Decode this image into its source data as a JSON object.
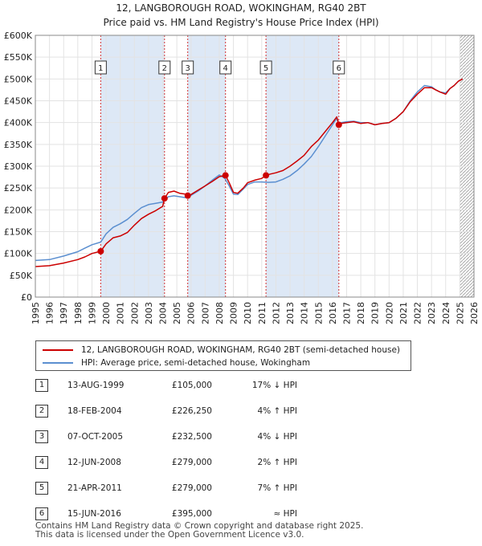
{
  "chart_data": {
    "type": "line",
    "title": "12, LANGBOROUGH ROAD, WOKINGHAM, RG40 2BT",
    "subtitle": "Price paid vs. HM Land Registry's House Price Index (HPI)",
    "xlabel": "",
    "ylabel": "",
    "xlim": [
      1995,
      2026
    ],
    "ylim": [
      0,
      600000
    ],
    "x_ticks": [
      1995,
      1996,
      1997,
      1998,
      1999,
      2000,
      2001,
      2002,
      2003,
      2004,
      2005,
      2006,
      2007,
      2008,
      2009,
      2010,
      2011,
      2012,
      2013,
      2014,
      2015,
      2016,
      2017,
      2018,
      2019,
      2020,
      2021,
      2022,
      2023,
      2024,
      2025,
      2026
    ],
    "y_ticks": [
      0,
      50000,
      100000,
      150000,
      200000,
      250000,
      300000,
      350000,
      400000,
      450000,
      500000,
      550000,
      600000
    ],
    "y_tick_labels": [
      "£0",
      "£50K",
      "£100K",
      "£150K",
      "£200K",
      "£250K",
      "£300K",
      "£350K",
      "£400K",
      "£450K",
      "£500K",
      "£550K",
      "£600K"
    ],
    "grid": true,
    "projection_start": 2025.0,
    "colors": {
      "property": "#cc0000",
      "hpi": "#5b8fd0",
      "shade": "#dde8f6",
      "marker_line": "#cc0000"
    },
    "series": [
      {
        "name": "12, LANGBOROUGH ROAD, WOKINGHAM, RG40 2BT (semi-detached house)",
        "color": "#cc0000",
        "x": [
          1995.0,
          1996.0,
          1997.0,
          1998.0,
          1998.5,
          1999.0,
          1999.62,
          2000.0,
          2000.5,
          2001.0,
          2001.5,
          2002.0,
          2002.5,
          2003.0,
          2003.5,
          2004.0,
          2004.13,
          2004.4,
          2004.8,
          2005.2,
          2005.6,
          2005.77,
          2006.0,
          2006.5,
          2007.0,
          2007.5,
          2008.0,
          2008.44,
          2008.7,
          2009.0,
          2009.3,
          2009.7,
          2010.0,
          2010.5,
          2011.0,
          2011.3,
          2011.6,
          2012.0,
          2012.5,
          2013.0,
          2013.5,
          2014.0,
          2014.5,
          2015.0,
          2015.5,
          2016.0,
          2016.3,
          2016.45,
          2016.6,
          2017.0,
          2017.5,
          2018.0,
          2018.5,
          2019.0,
          2019.5,
          2020.0,
          2020.5,
          2021.0,
          2021.5,
          2022.0,
          2022.5,
          2023.0,
          2023.3,
          2023.6,
          2024.0,
          2024.3,
          2024.6,
          2024.9,
          2025.2
        ],
        "values": [
          70000,
          72000,
          78000,
          86000,
          92000,
          100000,
          105000,
          122000,
          136000,
          140000,
          148000,
          165000,
          180000,
          190000,
          198000,
          208000,
          226250,
          240000,
          243000,
          238000,
          236000,
          232500,
          235000,
          245000,
          255000,
          265000,
          276000,
          279000,
          262000,
          240000,
          238000,
          250000,
          262000,
          268000,
          272000,
          279000,
          282000,
          285000,
          290000,
          300000,
          312000,
          325000,
          345000,
          360000,
          380000,
          400000,
          413000,
          395000,
          398000,
          400000,
          402000,
          398000,
          400000,
          395000,
          398000,
          400000,
          410000,
          425000,
          448000,
          465000,
          480000,
          480000,
          475000,
          470000,
          465000,
          478000,
          485000,
          495000,
          500000
        ]
      },
      {
        "name": "HPI: Average price, semi-detached house, Wokingham",
        "color": "#5b8fd0",
        "x": [
          1995.0,
          1996.0,
          1997.0,
          1998.0,
          1998.5,
          1999.0,
          1999.62,
          2000.0,
          2000.5,
          2001.0,
          2001.5,
          2002.0,
          2002.5,
          2003.0,
          2003.5,
          2004.0,
          2004.4,
          2004.8,
          2005.2,
          2005.6,
          2006.0,
          2006.5,
          2007.0,
          2007.5,
          2008.0,
          2008.4,
          2008.7,
          2009.0,
          2009.3,
          2009.7,
          2010.0,
          2010.5,
          2011.0,
          2011.5,
          2012.0,
          2012.5,
          2013.0,
          2013.5,
          2014.0,
          2014.5,
          2015.0,
          2015.5,
          2016.0,
          2016.3,
          2016.45,
          2016.6,
          2017.0,
          2017.5,
          2018.0,
          2018.5,
          2019.0,
          2019.5,
          2020.0,
          2020.5,
          2021.0,
          2021.5,
          2022.0,
          2022.5,
          2023.0,
          2023.3,
          2023.6,
          2024.0,
          2024.3,
          2024.6,
          2024.9,
          2025.2
        ],
        "values": [
          84000,
          86000,
          94000,
          104000,
          112000,
          120000,
          126000,
          145000,
          160000,
          168000,
          178000,
          192000,
          205000,
          212000,
          215000,
          218000,
          230000,
          232000,
          230000,
          228000,
          233000,
          243000,
          255000,
          268000,
          280000,
          272000,
          255000,
          236000,
          235000,
          248000,
          258000,
          264000,
          264000,
          263000,
          264000,
          270000,
          278000,
          290000,
          305000,
          322000,
          345000,
          370000,
          395000,
          410000,
          396000,
          400000,
          402000,
          403000,
          400000,
          400000,
          395000,
          398000,
          400000,
          410000,
          425000,
          450000,
          470000,
          485000,
          482000,
          475000,
          470000,
          468000,
          478000,
          485000,
          495000,
          500000
        ]
      }
    ],
    "sale_markers": [
      {
        "label": "1",
        "x": 1999.62,
        "value": 105000
      },
      {
        "label": "2",
        "x": 2004.13,
        "value": 226250
      },
      {
        "label": "3",
        "x": 2005.77,
        "value": 232500
      },
      {
        "label": "4",
        "x": 2008.44,
        "value": 279000
      },
      {
        "label": "5",
        "x": 2011.3,
        "value": 279000
      },
      {
        "label": "6",
        "x": 2016.45,
        "value": 395000
      }
    ],
    "shaded_ranges": [
      [
        1999.62,
        2004.13
      ],
      [
        2005.77,
        2008.44
      ],
      [
        2011.3,
        2016.45
      ]
    ]
  },
  "legend": {
    "property_label": "12, LANGBOROUGH ROAD, WOKINGHAM, RG40 2BT (semi-detached house)",
    "hpi_label": "HPI: Average price, semi-detached house, Wokingham"
  },
  "sales": [
    {
      "num": "1",
      "date": "13-AUG-1999",
      "price": "£105,000",
      "hpi": "17% ↓ HPI"
    },
    {
      "num": "2",
      "date": "18-FEB-2004",
      "price": "£226,250",
      "hpi": "4% ↑ HPI"
    },
    {
      "num": "3",
      "date": "07-OCT-2005",
      "price": "£232,500",
      "hpi": "4% ↓ HPI"
    },
    {
      "num": "4",
      "date": "12-JUN-2008",
      "price": "£279,000",
      "hpi": "2% ↑ HPI"
    },
    {
      "num": "5",
      "date": "21-APR-2011",
      "price": "£279,000",
      "hpi": "7% ↑ HPI"
    },
    {
      "num": "6",
      "date": "15-JUN-2016",
      "price": "£395,000",
      "hpi": "≈ HPI"
    }
  ],
  "footer": {
    "line1": "Contains HM Land Registry data © Crown copyright and database right 2025.",
    "line2": "This data is licensed under the Open Government Licence v3.0."
  }
}
